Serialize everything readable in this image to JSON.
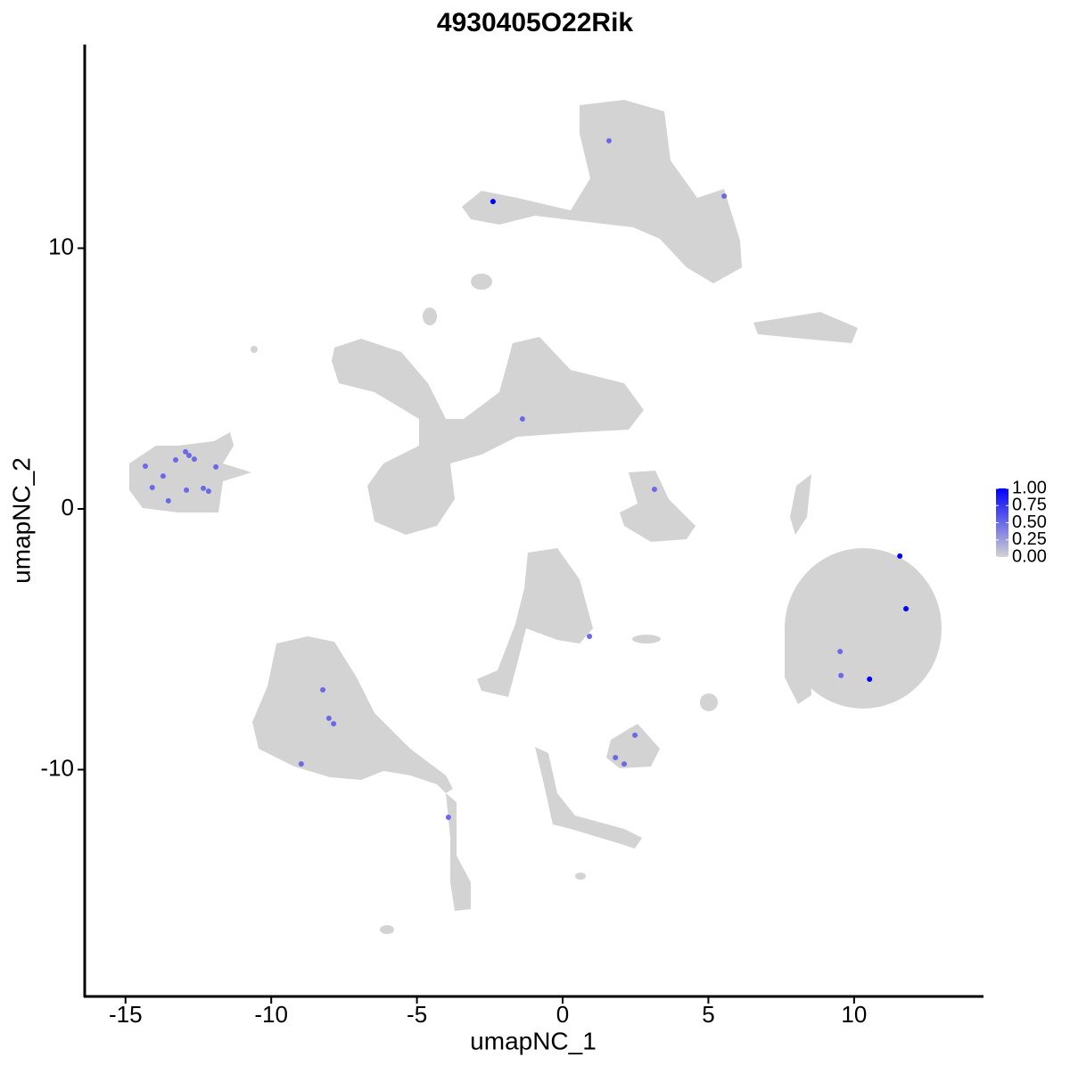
{
  "chart_data": {
    "type": "scatter",
    "title": "4930405O22Rik",
    "x_label": "umapNC_1",
    "y_label": "umapNC_2",
    "x": [
      -2.39,
      1.59,
      5.54,
      -1.38,
      3.15,
      -14.32,
      -12.94,
      -12.82,
      -13.28,
      -12.64,
      -11.9,
      -13.71,
      -14.08,
      -12.91,
      -12.33,
      -12.15,
      -13.53,
      11.57,
      11.78,
      9.52,
      9.55,
      10.53,
      0.92,
      -8.23,
      -8.02,
      -7.86,
      -8.97,
      2.48,
      1.81,
      2.11,
      -3.92
    ],
    "y": [
      11.79,
      14.12,
      12.0,
      3.45,
      0.75,
      1.64,
      2.19,
      2.05,
      1.88,
      1.91,
      1.61,
      1.26,
      0.82,
      0.72,
      0.79,
      0.68,
      0.31,
      -1.81,
      -3.83,
      -5.47,
      -6.39,
      -6.53,
      -4.89,
      -6.94,
      -8.03,
      -8.24,
      -9.78,
      -8.68,
      -9.54,
      -9.78,
      -11.83
    ],
    "values": [
      1.0,
      0.5,
      0.5,
      0.5,
      0.5,
      0.5,
      0.5,
      0.5,
      0.5,
      0.5,
      0.5,
      0.5,
      0.5,
      0.5,
      0.5,
      0.5,
      0.5,
      1.0,
      1.0,
      0.5,
      0.5,
      1.0,
      0.5,
      0.5,
      0.5,
      0.5,
      0.5,
      0.5,
      0.5,
      0.5,
      0.5
    ],
    "colors": [
      "#d3d3d3",
      "#0000ff"
    ],
    "color_lim": [
      0,
      1
    ],
    "color_ticks": [
      {
        "value": 0,
        "label": "0.00"
      },
      {
        "value": 0.25,
        "label": "0.25"
      },
      {
        "value": 0.5,
        "label": "0.50"
      },
      {
        "value": 0.75,
        "label": "0.75"
      },
      {
        "value": 1,
        "label": "1.00"
      }
    ],
    "xlim": [
      -16.4,
      14.41
    ],
    "ylim": [
      -18.7,
      17.81
    ],
    "xticks": [
      -15,
      -10,
      -5,
      0,
      5,
      10
    ],
    "yticks": [
      -10,
      0,
      10
    ],
    "grid": false
  }
}
